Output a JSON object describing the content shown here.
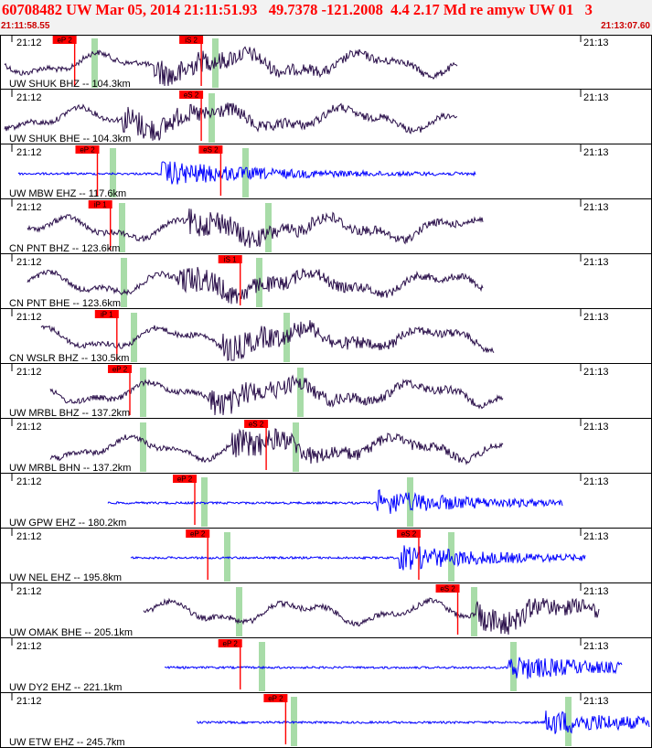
{
  "header": {
    "title": "60708482 UW Mar 05, 2014 21:11:51.93   49.7378 -121.2008  4.4 2.17 Md re amyw UW 01   3",
    "start_time": "21:11:58.55",
    "end_time": "21:13:07.60"
  },
  "tick_labels": {
    "left": "21:12",
    "right": "21:13"
  },
  "colors": {
    "short_period": "#0000ff",
    "broadband": "#2a0f4a",
    "pick_box": "#ff0000",
    "pick_band": "#a8dca8",
    "grid": "#000000"
  },
  "traces": [
    {
      "label": "UW SHUK BHZ -- 104.3km",
      "color_key": "broadband",
      "picks": [
        {
          "text": "eP 2",
          "start": 0.115
        },
        {
          "text": "iS 2",
          "start": 0.31
        }
      ]
    },
    {
      "label": "UW SHUK BHE -- 104.3km",
      "color_key": "broadband",
      "picks": [
        {
          "text": "eS 2",
          "start": 0.31
        }
      ]
    },
    {
      "label": "UW MBW EHZ -- 117.6km",
      "color_key": "short_period",
      "picks": [
        {
          "text": "eP 2",
          "start": 0.15
        },
        {
          "text": "eS 2",
          "start": 0.34
        }
      ]
    },
    {
      "label": "CN PNT BHZ -- 123.6km",
      "color_key": "broadband",
      "picks": [
        {
          "text": "iP 1",
          "start": 0.17
        }
      ]
    },
    {
      "label": "CN PNT BHE -- 123.6km",
      "color_key": "broadband",
      "picks": [
        {
          "text": "iS 1",
          "start": 0.37
        }
      ]
    },
    {
      "label": "CN WSLR BHZ -- 130.5km",
      "color_key": "broadband",
      "picks": [
        {
          "text": "iP 1",
          "start": 0.18
        }
      ]
    },
    {
      "label": "UW MRBL BHZ -- 137.2km",
      "color_key": "broadband",
      "picks": [
        {
          "text": "eP 2",
          "start": 0.2
        }
      ]
    },
    {
      "label": "UW MRBL BHN -- 137.2km",
      "color_key": "broadband",
      "picks": [
        {
          "text": "eS 2",
          "start": 0.41
        }
      ]
    },
    {
      "label": "UW GPW EHZ -- 180.2km",
      "color_key": "short_period",
      "picks": [
        {
          "text": "eP 2",
          "start": 0.3
        }
      ]
    },
    {
      "label": "UW NEL EHZ -- 195.8km",
      "color_key": "short_period",
      "picks": [
        {
          "text": "eP 2",
          "start": 0.32
        },
        {
          "text": "eS 2",
          "start": 0.645
        }
      ]
    },
    {
      "label": "UW OMAK BHE -- 205.1km",
      "color_key": "broadband",
      "picks": [
        {
          "text": "eS 2",
          "start": 0.705
        }
      ]
    },
    {
      "label": "UW DY2 EHZ -- 221.1km",
      "color_key": "short_period",
      "picks": [
        {
          "text": "eP 2",
          "start": 0.37
        }
      ]
    },
    {
      "label": "UW ETW EHZ -- 245.7km",
      "color_key": "short_period",
      "picks": [
        {
          "text": "eP 2",
          "start": 0.44
        }
      ]
    }
  ]
}
